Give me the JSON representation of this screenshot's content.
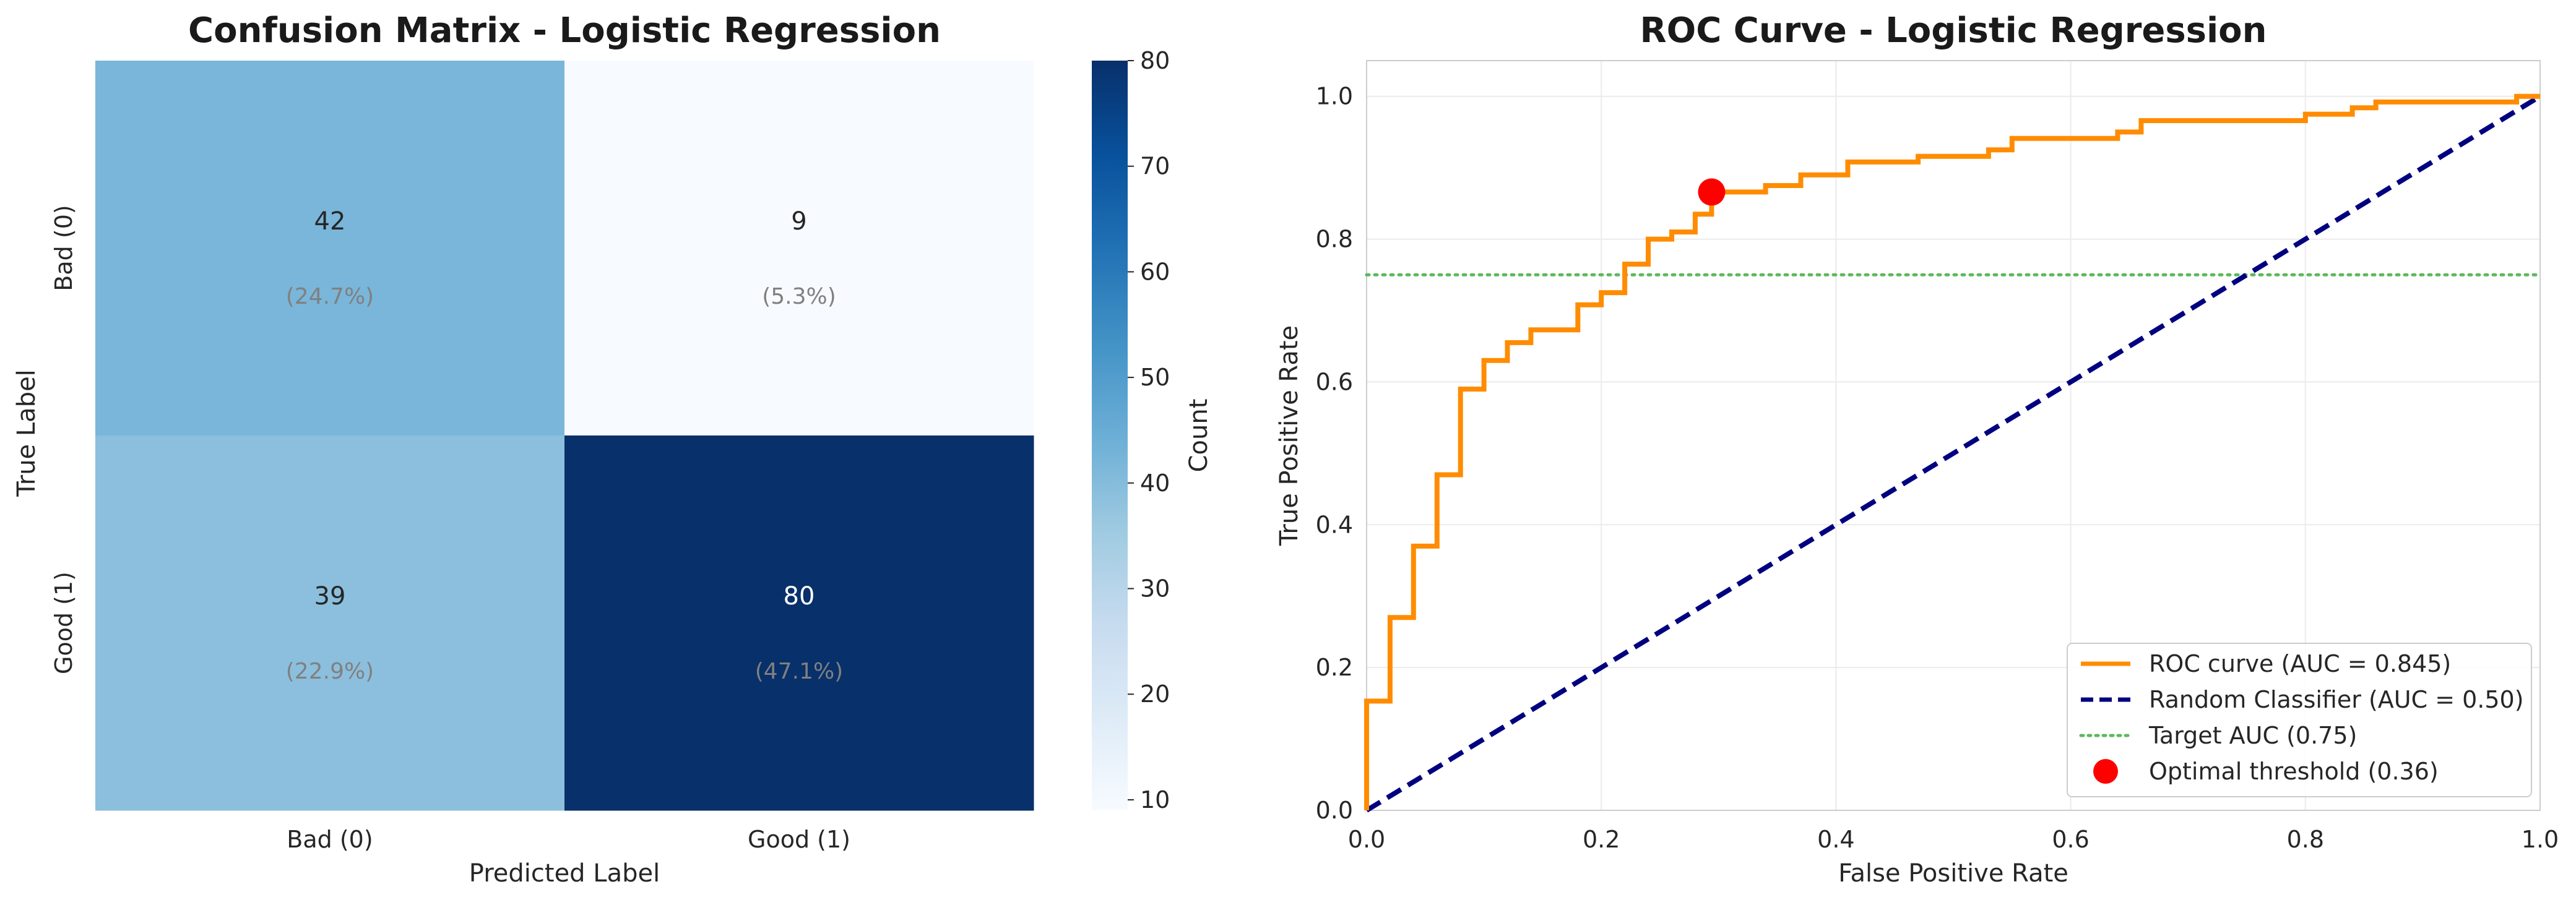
{
  "chart_data": [
    {
      "type": "heatmap",
      "title": "Confusion Matrix - Logistic Regression",
      "xlabel": "Predicted Label",
      "ylabel": "True Label",
      "x_categories": [
        "Bad (0)",
        "Good (1)"
      ],
      "y_categories": [
        "Bad (0)",
        "Good (1)"
      ],
      "values": [
        [
          42,
          9
        ],
        [
          39,
          80
        ]
      ],
      "annotations": [
        [
          "(24.7%)",
          "(5.3%)"
        ],
        [
          "(22.9%)",
          "(47.1%)"
        ]
      ],
      "colormap": "Blues",
      "vmin": 9,
      "vmax": 80,
      "colorbar": {
        "label": "Count",
        "ticks": [
          10,
          20,
          30,
          40,
          50,
          60,
          70,
          80
        ],
        "tick_labels": [
          "10",
          "20",
          "30",
          "40",
          "50",
          "60",
          "70",
          "80"
        ]
      }
    },
    {
      "type": "line",
      "title": "ROC Curve - Logistic Regression",
      "xlabel": "False Positive Rate",
      "ylabel": "True Positive Rate",
      "xlim": [
        0,
        1
      ],
      "ylim": [
        0,
        1.05
      ],
      "xticks": [
        0,
        0.2,
        0.4,
        0.6,
        0.8,
        1.0
      ],
      "xtick_labels": [
        "0.0",
        "0.2",
        "0.4",
        "0.6",
        "0.8",
        "1.0"
      ],
      "yticks": [
        0,
        0.2,
        0.4,
        0.6,
        0.8,
        1.0
      ],
      "ytick_labels": [
        "0.0",
        "0.2",
        "0.4",
        "0.6",
        "0.8",
        "1.0"
      ],
      "grid": true,
      "legend_position": "lower-right",
      "series": [
        {
          "name": "ROC curve (AUC = 0.845)",
          "color": "#ff8c00",
          "style": "solid",
          "x": [
            0,
            0,
            0.02,
            0.02,
            0.04,
            0.04,
            0.06,
            0.06,
            0.08,
            0.08,
            0.1,
            0.1,
            0.12,
            0.12,
            0.14,
            0.14,
            0.18,
            0.18,
            0.2,
            0.2,
            0.22,
            0.22,
            0.24,
            0.24,
            0.26,
            0.26,
            0.28,
            0.28,
            0.294,
            0.294,
            0.34,
            0.34,
            0.37,
            0.37,
            0.41,
            0.41,
            0.47,
            0.47,
            0.53,
            0.53,
            0.55,
            0.55,
            0.64,
            0.64,
            0.66,
            0.66,
            0.8,
            0.8,
            0.84,
            0.84,
            0.86,
            0.86,
            0.98,
            0.98,
            1.0
          ],
          "y": [
            0,
            0.153,
            0.153,
            0.27,
            0.27,
            0.37,
            0.37,
            0.47,
            0.47,
            0.59,
            0.59,
            0.63,
            0.63,
            0.655,
            0.655,
            0.673,
            0.673,
            0.708,
            0.708,
            0.725,
            0.725,
            0.765,
            0.765,
            0.8,
            0.8,
            0.81,
            0.81,
            0.835,
            0.835,
            0.866,
            0.866,
            0.875,
            0.875,
            0.89,
            0.89,
            0.908,
            0.908,
            0.916,
            0.916,
            0.925,
            0.925,
            0.941,
            0.941,
            0.95,
            0.95,
            0.966,
            0.966,
            0.975,
            0.975,
            0.984,
            0.984,
            0.992,
            0.992,
            1.0,
            1.0
          ]
        },
        {
          "name": "Random Classifier (AUC = 0.50)",
          "color": "#000080",
          "style": "dashed",
          "x": [
            0,
            1
          ],
          "y": [
            0,
            1
          ]
        },
        {
          "name": "Target AUC (0.75)",
          "color": "#5cb85c",
          "style": "dotted",
          "x": [
            0,
            1
          ],
          "y": [
            0.75,
            0.75
          ]
        },
        {
          "name": "Optimal threshold (0.36)",
          "color": "#ff0000",
          "style": "marker",
          "x": [
            0.294
          ],
          "y": [
            0.866
          ]
        }
      ]
    }
  ]
}
